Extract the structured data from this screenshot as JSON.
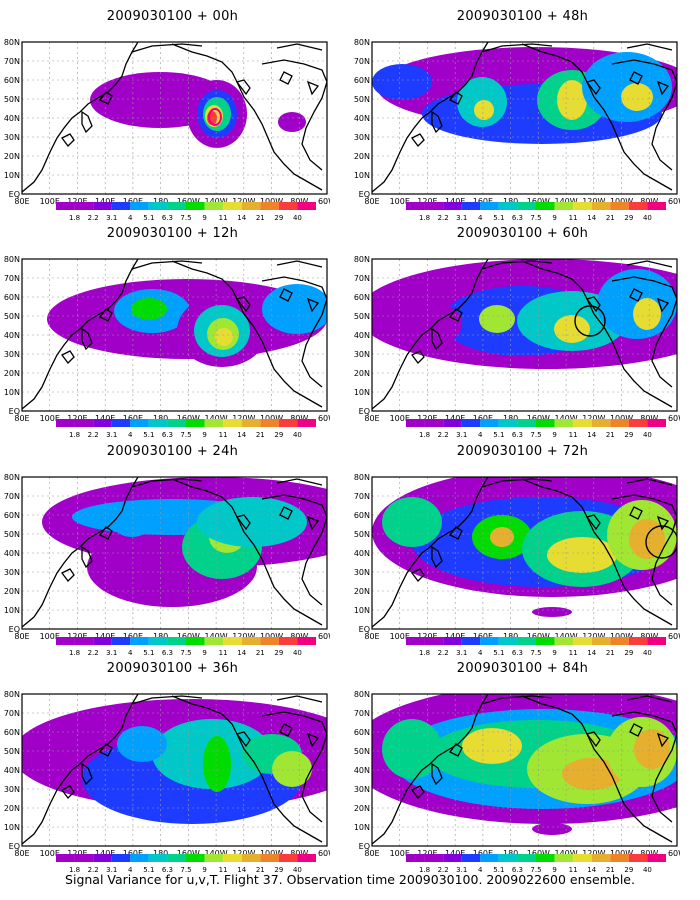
{
  "panels": [
    {
      "title": "2009030100 + 00h"
    },
    {
      "title": "2009030100 + 48h"
    },
    {
      "title": "2009030100 + 12h"
    },
    {
      "title": "2009030100 + 60h"
    },
    {
      "title": "2009030100 + 24h"
    },
    {
      "title": "2009030100 + 72h"
    },
    {
      "title": "2009030100 + 36h"
    },
    {
      "title": "2009030100 + 84h"
    }
  ],
  "x_labels": [
    "80E",
    "100E",
    "120E",
    "140E",
    "160E",
    "180",
    "160W",
    "140W",
    "120W",
    "100W",
    "80W",
    "60W"
  ],
  "y_labels": [
    "80N",
    "70N",
    "60N",
    "50N",
    "40N",
    "30N",
    "20N",
    "10N",
    "EQ"
  ],
  "colorbar": {
    "labels": [
      "1.8",
      "2.2",
      "3.1",
      "4",
      "5.1",
      "6.3",
      "7.5",
      "9",
      "11",
      "14",
      "21",
      "29",
      "40"
    ],
    "colors": [
      "#a000c8",
      "#8200dc",
      "#1e3cff",
      "#00a0ff",
      "#00c8c8",
      "#00d28c",
      "#00dc00",
      "#a0e632",
      "#e6dc32",
      "#e6af2d",
      "#f08228",
      "#fa3c3c",
      "#f00082"
    ]
  },
  "caption": "Signal Variance for u,v,T. Flight 37. Observation time 2009030100. 2009022600 ensemble."
}
